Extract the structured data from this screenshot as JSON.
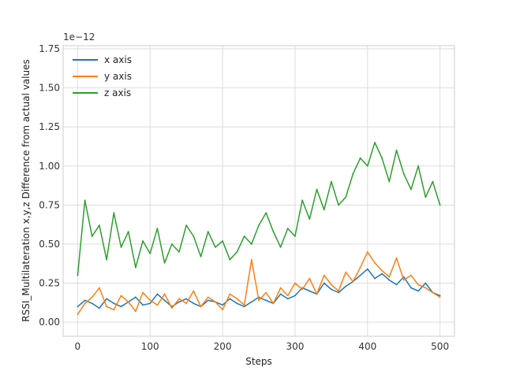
{
  "chart_data": {
    "type": "line",
    "xlabel": "Steps",
    "ylabel": "RSSI_Multilateration x,y,z Difference from actual values",
    "offset_text": "1e−12",
    "xlim": [
      -20,
      520
    ],
    "ylim": [
      -0.09,
      1.77
    ],
    "xticks": [
      0,
      100,
      200,
      300,
      400,
      500
    ],
    "yticks": [
      0.0,
      0.25,
      0.5,
      0.75,
      1.0,
      1.25,
      1.5,
      1.75
    ],
    "ytick_labels": [
      "0.00",
      "0.25",
      "0.50",
      "0.75",
      "1.00",
      "1.25",
      "1.50",
      "1.75"
    ],
    "grid": true,
    "legend_position": "top-left",
    "series": [
      {
        "name": "x axis",
        "color": "#1f77b4",
        "x": [
          0,
          10,
          20,
          30,
          40,
          50,
          60,
          70,
          80,
          90,
          100,
          110,
          120,
          130,
          140,
          150,
          160,
          170,
          180,
          190,
          200,
          210,
          220,
          230,
          240,
          250,
          260,
          270,
          280,
          290,
          300,
          310,
          320,
          330,
          340,
          350,
          360,
          370,
          380,
          390,
          400,
          410,
          420,
          430,
          440,
          450,
          460,
          470,
          480,
          490,
          500
        ],
        "values": [
          0.1,
          0.14,
          0.12,
          0.09,
          0.15,
          0.12,
          0.1,
          0.13,
          0.16,
          0.11,
          0.12,
          0.18,
          0.14,
          0.1,
          0.13,
          0.15,
          0.12,
          0.1,
          0.14,
          0.13,
          0.11,
          0.15,
          0.12,
          0.1,
          0.13,
          0.16,
          0.14,
          0.12,
          0.18,
          0.15,
          0.17,
          0.22,
          0.2,
          0.18,
          0.25,
          0.21,
          0.19,
          0.23,
          0.26,
          0.3,
          0.34,
          0.28,
          0.31,
          0.27,
          0.24,
          0.29,
          0.22,
          0.2,
          0.25,
          0.19,
          0.17
        ]
      },
      {
        "name": "y axis",
        "color": "#ff7f0e",
        "x": [
          0,
          10,
          20,
          30,
          40,
          50,
          60,
          70,
          80,
          90,
          100,
          110,
          120,
          130,
          140,
          150,
          160,
          170,
          180,
          190,
          200,
          210,
          220,
          230,
          240,
          250,
          260,
          270,
          280,
          290,
          300,
          310,
          320,
          330,
          340,
          350,
          360,
          370,
          380,
          390,
          400,
          410,
          420,
          430,
          440,
          450,
          460,
          470,
          480,
          490,
          500
        ],
        "values": [
          0.05,
          0.12,
          0.16,
          0.22,
          0.1,
          0.08,
          0.17,
          0.13,
          0.07,
          0.19,
          0.14,
          0.11,
          0.18,
          0.09,
          0.15,
          0.12,
          0.2,
          0.1,
          0.16,
          0.13,
          0.08,
          0.18,
          0.15,
          0.11,
          0.4,
          0.14,
          0.19,
          0.12,
          0.22,
          0.17,
          0.25,
          0.21,
          0.28,
          0.18,
          0.3,
          0.24,
          0.2,
          0.32,
          0.26,
          0.35,
          0.45,
          0.38,
          0.33,
          0.29,
          0.41,
          0.27,
          0.3,
          0.24,
          0.22,
          0.19,
          0.16
        ]
      },
      {
        "name": "z axis",
        "color": "#2ca02c",
        "x": [
          0,
          10,
          20,
          30,
          40,
          50,
          60,
          70,
          80,
          90,
          100,
          110,
          120,
          130,
          140,
          150,
          160,
          170,
          180,
          190,
          200,
          210,
          220,
          230,
          240,
          250,
          260,
          270,
          280,
          290,
          300,
          310,
          320,
          330,
          340,
          350,
          360,
          370,
          380,
          390,
          400,
          410,
          420,
          430,
          440,
          450,
          460,
          470,
          480,
          490,
          500
        ],
        "values": [
          0.3,
          0.78,
          0.55,
          0.62,
          0.4,
          0.7,
          0.48,
          0.58,
          0.35,
          0.52,
          0.44,
          0.6,
          0.38,
          0.5,
          0.45,
          0.62,
          0.55,
          0.42,
          0.58,
          0.48,
          0.52,
          0.4,
          0.45,
          0.55,
          0.5,
          0.62,
          0.7,
          0.58,
          0.48,
          0.6,
          0.55,
          0.78,
          0.66,
          0.85,
          0.72,
          0.9,
          0.75,
          0.8,
          0.95,
          1.05,
          1.0,
          1.15,
          1.05,
          0.9,
          1.1,
          0.95,
          0.85,
          1.0,
          0.8,
          0.9,
          0.75
        ]
      }
    ]
  }
}
